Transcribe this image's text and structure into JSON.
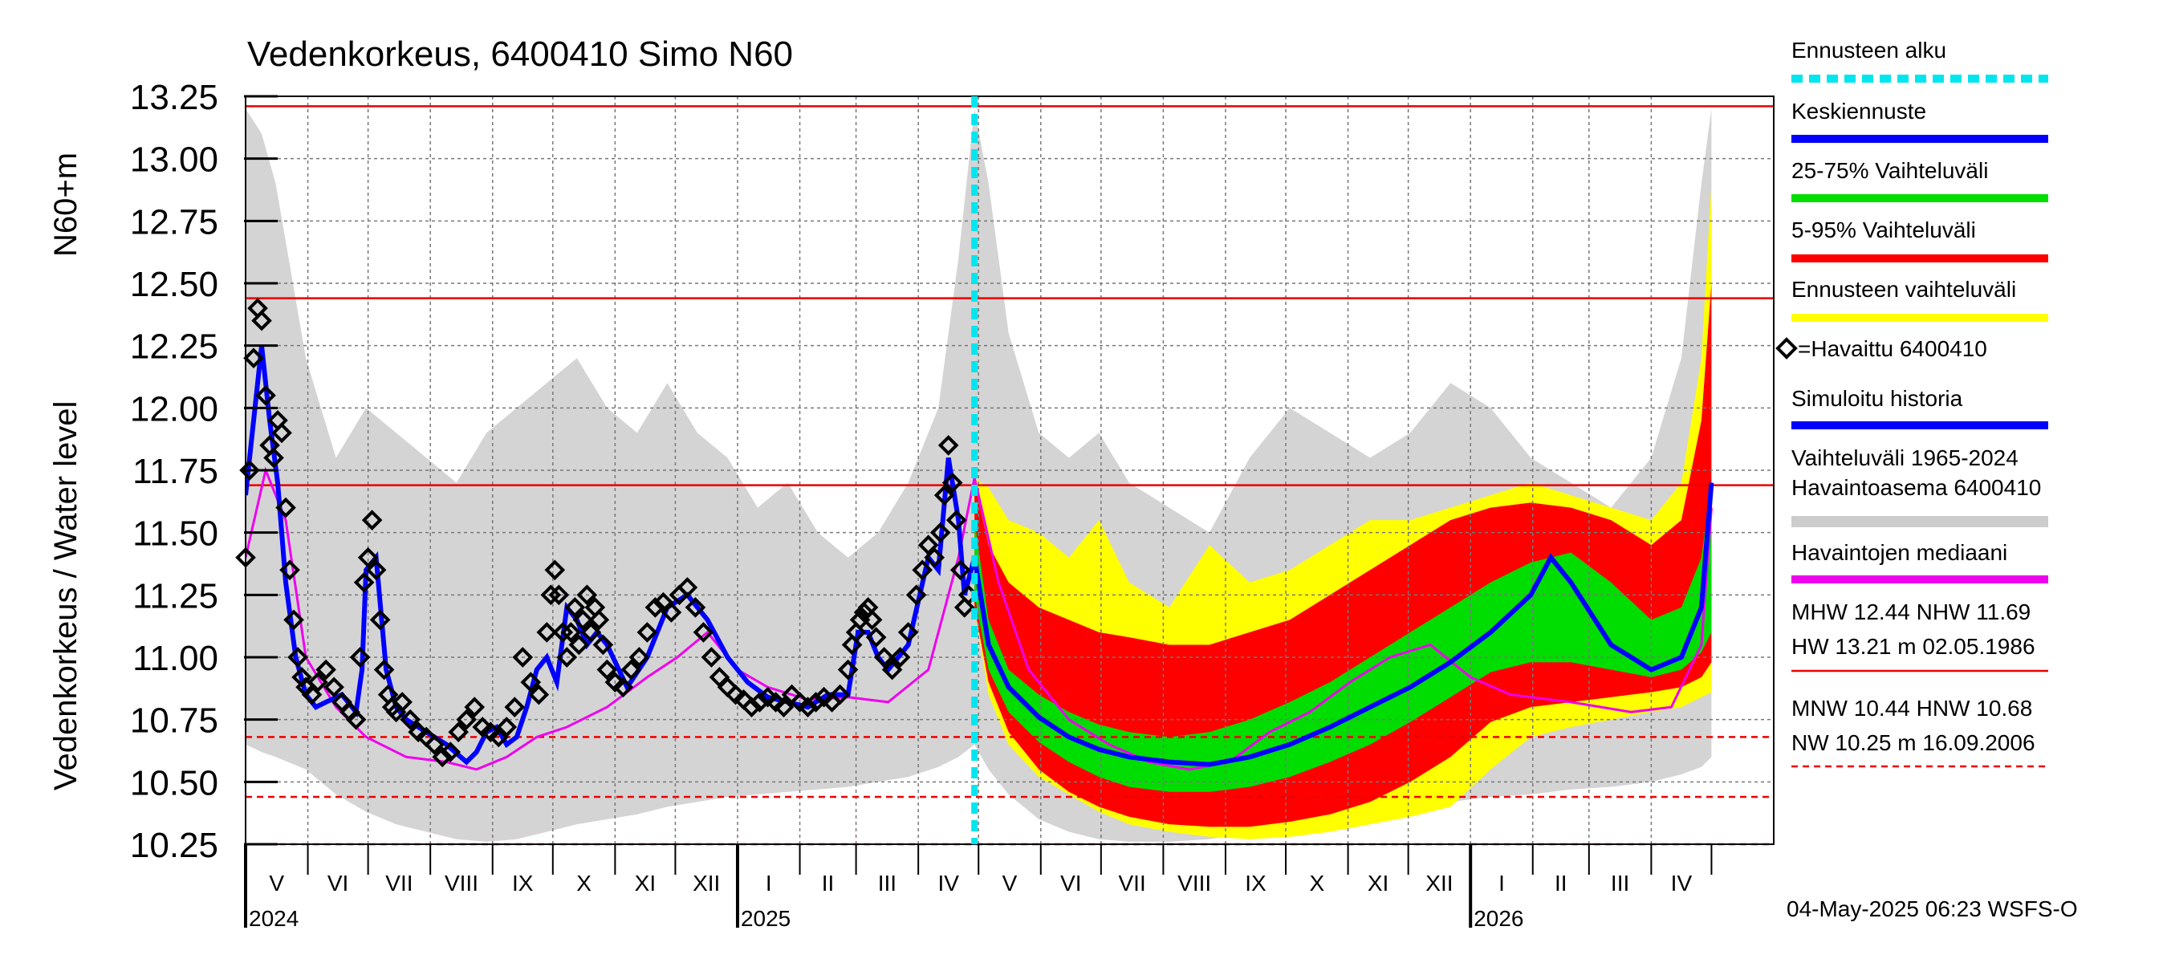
{
  "chart_data": {
    "type": "line",
    "title": "Vedenkorkeus, 6400410 Simo N60",
    "ylabel_main": "Vedenkorkeus / Water level",
    "ylabel_unit": "N60+m",
    "ylim": [
      10.25,
      13.25
    ],
    "yticks": [
      "10.25",
      "10.50",
      "10.75",
      "11.00",
      "11.25",
      "11.50",
      "11.75",
      "12.00",
      "12.25",
      "12.50",
      "12.75",
      "13.00",
      "13.25"
    ],
    "x_range_days": [
      0,
      761
    ],
    "forecast_start_day": 363,
    "months": [
      {
        "label": "V",
        "start": 0,
        "end": 31
      },
      {
        "label": "VI",
        "start": 31,
        "end": 61
      },
      {
        "label": "VII",
        "start": 61,
        "end": 92
      },
      {
        "label": "VIII",
        "start": 92,
        "end": 123
      },
      {
        "label": "IX",
        "start": 123,
        "end": 153
      },
      {
        "label": "X",
        "start": 153,
        "end": 184
      },
      {
        "label": "XI",
        "start": 184,
        "end": 214
      },
      {
        "label": "XII",
        "start": 214,
        "end": 245
      },
      {
        "label": "I",
        "start": 245,
        "end": 276
      },
      {
        "label": "II",
        "start": 276,
        "end": 304
      },
      {
        "label": "III",
        "start": 304,
        "end": 335
      },
      {
        "label": "IV",
        "start": 335,
        "end": 365
      },
      {
        "label": "V",
        "start": 365,
        "end": 396
      },
      {
        "label": "VI",
        "start": 396,
        "end": 426
      },
      {
        "label": "VII",
        "start": 426,
        "end": 457
      },
      {
        "label": "VIII",
        "start": 457,
        "end": 488
      },
      {
        "label": "IX",
        "start": 488,
        "end": 518
      },
      {
        "label": "X",
        "start": 518,
        "end": 549
      },
      {
        "label": "XI",
        "start": 549,
        "end": 579
      },
      {
        "label": "XII",
        "start": 579,
        "end": 610
      },
      {
        "label": "I",
        "start": 610,
        "end": 641
      },
      {
        "label": "II",
        "start": 641,
        "end": 669
      },
      {
        "label": "III",
        "start": 669,
        "end": 700
      },
      {
        "label": "IV",
        "start": 700,
        "end": 730
      }
    ],
    "years": [
      {
        "label": "2024",
        "day": 0
      },
      {
        "label": "2025",
        "day": 245
      },
      {
        "label": "2026",
        "day": 610
      }
    ],
    "reference_lines": [
      {
        "name": "HW",
        "value": 13.21,
        "style": "solid"
      },
      {
        "name": "MHW",
        "value": 12.44,
        "style": "solid"
      },
      {
        "name": "NHW",
        "value": 11.69,
        "style": "solid"
      },
      {
        "name": "HNW",
        "value": 10.68,
        "style": "dashed"
      },
      {
        "name": "MNW",
        "value": 10.44,
        "style": "dashed"
      },
      {
        "name": "NW",
        "value": 10.25,
        "style": "dashed"
      }
    ],
    "historical_range_band": {
      "days": [
        0,
        8,
        15,
        30,
        45,
        60,
        75,
        90,
        105,
        120,
        135,
        150,
        165,
        180,
        195,
        210,
        225,
        240,
        255,
        270,
        285,
        300,
        315,
        330,
        345,
        355,
        363,
        370,
        380,
        395,
        410,
        425,
        440,
        460,
        480,
        500,
        520,
        540,
        560,
        580,
        600,
        620,
        640,
        660,
        680,
        700,
        715,
        725,
        730
      ],
      "upper": [
        13.2,
        13.1,
        12.9,
        12.2,
        11.8,
        12.0,
        11.9,
        11.8,
        11.7,
        11.9,
        12.0,
        12.1,
        12.2,
        12.0,
        11.9,
        12.1,
        11.9,
        11.8,
        11.6,
        11.7,
        11.5,
        11.4,
        11.5,
        11.7,
        12.0,
        12.6,
        13.2,
        12.9,
        12.3,
        11.9,
        11.8,
        11.9,
        11.7,
        11.6,
        11.5,
        11.8,
        12.0,
        11.9,
        11.8,
        11.9,
        12.1,
        12.0,
        11.8,
        11.7,
        11.6,
        11.8,
        12.2,
        12.9,
        13.2
      ],
      "lower": [
        10.65,
        10.62,
        10.6,
        10.55,
        10.45,
        10.38,
        10.33,
        10.3,
        10.27,
        10.26,
        10.27,
        10.3,
        10.33,
        10.35,
        10.37,
        10.4,
        10.42,
        10.44,
        10.45,
        10.46,
        10.47,
        10.48,
        10.5,
        10.52,
        10.56,
        10.6,
        10.65,
        10.55,
        10.45,
        10.35,
        10.3,
        10.27,
        10.26,
        10.26,
        10.27,
        10.3,
        10.33,
        10.35,
        10.37,
        10.4,
        10.42,
        10.44,
        10.45,
        10.47,
        10.48,
        10.5,
        10.53,
        10.56,
        10.6
      ]
    },
    "series": [
      {
        "name": "Ennusteen vaihteluväli",
        "color": "#ffff00",
        "days": [
          363,
          370,
          380,
          395,
          410,
          425,
          440,
          460,
          480,
          500,
          520,
          540,
          560,
          580,
          600,
          620,
          640,
          660,
          680,
          700,
          715,
          725,
          730
        ],
        "upper": [
          11.72,
          11.68,
          11.55,
          11.5,
          11.4,
          11.55,
          11.3,
          11.2,
          11.45,
          11.3,
          11.35,
          11.45,
          11.55,
          11.55,
          11.6,
          11.65,
          11.7,
          11.65,
          11.6,
          11.55,
          11.7,
          12.2,
          12.9
        ],
        "lower": [
          11.2,
          10.85,
          10.65,
          10.52,
          10.45,
          10.38,
          10.33,
          10.3,
          10.28,
          10.27,
          10.28,
          10.3,
          10.33,
          10.36,
          10.4,
          10.55,
          10.68,
          10.72,
          10.75,
          10.78,
          10.8,
          10.84,
          10.86
        ]
      },
      {
        "name": "5-95% Vaihteluväli",
        "color": "#ff0000",
        "days": [
          363,
          370,
          380,
          395,
          410,
          425,
          440,
          460,
          480,
          500,
          520,
          540,
          560,
          580,
          600,
          620,
          640,
          660,
          680,
          700,
          715,
          725,
          730
        ],
        "upper": [
          11.7,
          11.45,
          11.3,
          11.2,
          11.15,
          11.1,
          11.08,
          11.05,
          11.05,
          11.1,
          11.15,
          11.25,
          11.35,
          11.45,
          11.55,
          11.6,
          11.62,
          11.6,
          11.55,
          11.45,
          11.55,
          11.95,
          12.5
        ],
        "lower": [
          11.2,
          10.9,
          10.7,
          10.55,
          10.46,
          10.4,
          10.36,
          10.33,
          10.32,
          10.32,
          10.34,
          10.37,
          10.42,
          10.5,
          10.6,
          10.74,
          10.8,
          10.82,
          10.84,
          10.86,
          10.88,
          10.92,
          10.98
        ]
      },
      {
        "name": "25-75% Vaihteluväli",
        "color": "#00dd00",
        "days": [
          363,
          370,
          380,
          395,
          410,
          425,
          440,
          460,
          480,
          500,
          520,
          540,
          560,
          580,
          600,
          620,
          640,
          660,
          680,
          700,
          715,
          725,
          730
        ],
        "upper": [
          11.55,
          11.15,
          10.95,
          10.85,
          10.78,
          10.73,
          10.7,
          10.68,
          10.7,
          10.75,
          10.82,
          10.9,
          11.0,
          11.1,
          11.2,
          11.3,
          11.38,
          11.42,
          11.3,
          11.15,
          11.2,
          11.4,
          11.7
        ],
        "lower": [
          11.25,
          10.95,
          10.78,
          10.66,
          10.58,
          10.52,
          10.48,
          10.46,
          10.46,
          10.48,
          10.52,
          10.58,
          10.65,
          10.74,
          10.84,
          10.94,
          10.98,
          10.98,
          10.95,
          10.92,
          10.95,
          11.02,
          11.1
        ]
      },
      {
        "name": "Keskiennuste",
        "color": "#0000ff",
        "days": [
          363,
          370,
          380,
          395,
          410,
          425,
          440,
          460,
          480,
          500,
          520,
          540,
          560,
          580,
          600,
          620,
          640,
          650,
          660,
          680,
          700,
          715,
          725,
          730
        ],
        "values": [
          11.4,
          11.05,
          10.88,
          10.76,
          10.68,
          10.63,
          10.6,
          10.58,
          10.57,
          10.6,
          10.65,
          10.72,
          10.8,
          10.88,
          10.98,
          11.1,
          11.25,
          11.4,
          11.3,
          11.05,
          10.95,
          11.0,
          11.2,
          11.7
        ]
      },
      {
        "name": "Havaintojen mediaani",
        "color": "#ee00ee",
        "days": [
          0,
          10,
          20,
          30,
          45,
          60,
          80,
          100,
          115,
          130,
          145,
          160,
          180,
          200,
          215,
          230,
          245,
          260,
          280,
          300,
          320,
          340,
          355,
          363,
          375,
          390,
          410,
          430,
          450,
          470,
          490,
          510,
          530,
          550,
          570,
          590,
          610,
          630,
          660,
          690,
          710,
          725,
          730
        ],
        "values": [
          11.4,
          11.75,
          11.55,
          11.0,
          10.8,
          10.68,
          10.6,
          10.58,
          10.55,
          10.6,
          10.68,
          10.72,
          10.8,
          10.92,
          11.0,
          11.1,
          10.95,
          10.88,
          10.83,
          10.84,
          10.82,
          10.95,
          11.4,
          11.72,
          11.3,
          10.95,
          10.75,
          10.65,
          10.58,
          10.55,
          10.58,
          10.7,
          10.78,
          10.9,
          11.0,
          11.05,
          10.92,
          10.85,
          10.82,
          10.78,
          10.8,
          11.05,
          11.6
        ]
      },
      {
        "name": "Simuloitu historia",
        "color": "#0000ff",
        "days": [
          0,
          4,
          8,
          12,
          16,
          20,
          25,
          30,
          35,
          40,
          48,
          55,
          58,
          60,
          65,
          70,
          75,
          80,
          90,
          100,
          110,
          115,
          120,
          125,
          130,
          135,
          140,
          145,
          150,
          155,
          160,
          165,
          170,
          175,
          180,
          190,
          200,
          210,
          220,
          230,
          240,
          250,
          260,
          270,
          280,
          290,
          300,
          305,
          310,
          315,
          320,
          330,
          340,
          345,
          350,
          355,
          358,
          363
        ],
        "values": [
          11.65,
          11.95,
          12.25,
          11.95,
          11.7,
          11.3,
          11.0,
          10.85,
          10.8,
          10.82,
          10.85,
          10.78,
          10.95,
          11.35,
          11.4,
          10.95,
          10.8,
          10.75,
          10.7,
          10.65,
          10.58,
          10.62,
          10.7,
          10.72,
          10.65,
          10.68,
          10.8,
          10.95,
          11.0,
          10.9,
          11.2,
          11.15,
          11.05,
          11.1,
          11.05,
          10.88,
          11.0,
          11.2,
          11.25,
          11.15,
          11.0,
          10.9,
          10.84,
          10.82,
          10.8,
          10.85,
          10.85,
          11.1,
          11.1,
          11.0,
          10.95,
          11.05,
          11.4,
          11.35,
          11.8,
          11.55,
          11.25,
          11.4
        ]
      }
    ],
    "observed": {
      "name": "Havaittu 6400410",
      "color": "#000000",
      "days": [
        0,
        2,
        4,
        6,
        8,
        10,
        12,
        14,
        16,
        18,
        20,
        22,
        24,
        26,
        28,
        30,
        33,
        36,
        40,
        44,
        48,
        52,
        55,
        57,
        59,
        61,
        63,
        65,
        67,
        69,
        71,
        73,
        75,
        78,
        82,
        86,
        90,
        94,
        98,
        102,
        106,
        110,
        114,
        118,
        122,
        126,
        130,
        134,
        138,
        142,
        146,
        150,
        152,
        154,
        156,
        158,
        160,
        162,
        164,
        166,
        168,
        170,
        172,
        174,
        176,
        178,
        180,
        184,
        188,
        192,
        196,
        200,
        204,
        208,
        212,
        216,
        220,
        224,
        228,
        232,
        236,
        240,
        244,
        248,
        252,
        256,
        260,
        264,
        268,
        272,
        276,
        280,
        284,
        288,
        292,
        296,
        300,
        302,
        304,
        306,
        308,
        310,
        312,
        314,
        318,
        322,
        326,
        330,
        334,
        337,
        340,
        343,
        346,
        348,
        350,
        352,
        354,
        356,
        358,
        360
      ],
      "values": [
        11.4,
        11.75,
        12.2,
        12.4,
        12.35,
        12.05,
        11.85,
        11.8,
        11.95,
        11.9,
        11.6,
        11.35,
        11.15,
        11.0,
        10.92,
        10.88,
        10.85,
        10.9,
        10.95,
        10.88,
        10.82,
        10.78,
        10.75,
        11.0,
        11.3,
        11.4,
        11.55,
        11.35,
        11.15,
        10.95,
        10.85,
        10.8,
        10.78,
        10.82,
        10.75,
        10.7,
        10.68,
        10.65,
        10.6,
        10.62,
        10.7,
        10.75,
        10.8,
        10.72,
        10.7,
        10.68,
        10.72,
        10.8,
        11.0,
        10.9,
        10.85,
        11.1,
        11.25,
        11.35,
        11.25,
        11.1,
        11.0,
        11.1,
        11.2,
        11.05,
        11.15,
        11.25,
        11.1,
        11.2,
        11.15,
        11.05,
        10.95,
        10.9,
        10.88,
        10.95,
        11.0,
        11.1,
        11.2,
        11.22,
        11.18,
        11.25,
        11.28,
        11.2,
        11.1,
        11.0,
        10.92,
        10.88,
        10.85,
        10.83,
        10.8,
        10.82,
        10.84,
        10.82,
        10.8,
        10.85,
        10.82,
        10.8,
        10.82,
        10.84,
        10.82,
        10.85,
        10.95,
        11.05,
        11.1,
        11.15,
        11.18,
        11.2,
        11.15,
        11.08,
        11.0,
        10.95,
        11.0,
        11.1,
        11.25,
        11.35,
        11.45,
        11.4,
        11.5,
        11.65,
        11.85,
        11.7,
        11.55,
        11.35,
        11.2,
        11.25
      ]
    },
    "legend": {
      "items": [
        {
          "label": "Ennusteen alku",
          "color": "#00e5ee",
          "style": "dashed"
        },
        {
          "label": "Keskiennuste",
          "color": "#0000ff",
          "style": "solid"
        },
        {
          "label": "25-75% Vaihteluväli",
          "color": "#00dd00",
          "style": "solid"
        },
        {
          "label": "5-95% Vaihteluväli",
          "color": "#ff0000",
          "style": "solid"
        },
        {
          "label": "Ennusteen vaihteluväli",
          "color": "#ffff00",
          "style": "solid"
        },
        {
          "label": "=Havaittu 6400410",
          "color": "#000000",
          "style": "marker"
        },
        {
          "label": "Simuloitu historia",
          "color": "#0000ff",
          "style": "solid"
        },
        {
          "label": "Vaihteluväli 1965-2024",
          "label2": " Havaintoasema 6400410",
          "color": "#cccccc",
          "style": "solid"
        },
        {
          "label": "Havaintojen mediaani",
          "color": "#ee00ee",
          "style": "solid"
        }
      ],
      "stats": {
        "line1": "MHW  12.44 NHW  11.69",
        "line2": "HW  13.21 m 02.05.1986",
        "line3": "MNW  10.44 HNW  10.68",
        "line4": "NW  10.25 m 16.09.2006"
      }
    },
    "footer": "04-May-2025 06:23 WSFS-O"
  }
}
